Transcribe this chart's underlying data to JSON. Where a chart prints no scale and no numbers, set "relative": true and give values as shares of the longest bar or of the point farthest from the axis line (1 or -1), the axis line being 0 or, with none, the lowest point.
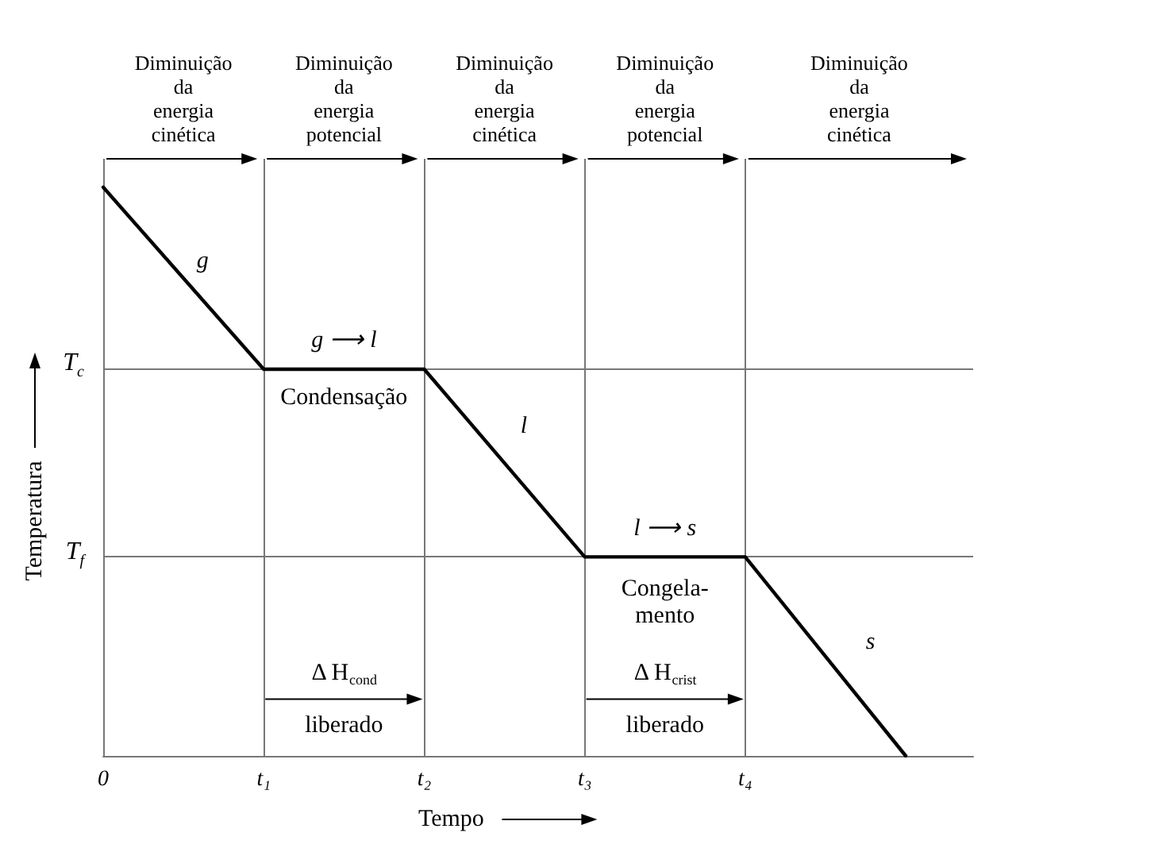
{
  "chart_data": {
    "type": "line",
    "relative": true,
    "xlabel": "Tempo",
    "ylabel": "Temperatura",
    "categories": [
      "0",
      "t₁",
      "t₂",
      "t₃",
      "t₄",
      null
    ],
    "series": [
      {
        "color": "#000000",
        "values": [
          1,
          0.68,
          0.68,
          0.35,
          0.35,
          0
        ]
      }
    ],
    "grid": "x",
    "marker": "none",
    "line_style": "solid",
    "ref_lines": [
      {
        "axis": "y",
        "value": 0.68,
        "label": "T$_{c}$"
      },
      {
        "axis": "y",
        "value": 0.35,
        "label": "T$_{f}$"
      }
    ],
    "annotations": [
      "Diminuição\nda\nenergia\ncinética",
      "Diminuição\nda\nenergia\npotencial",
      "Diminuição\nda\nenergia\ncinética",
      "Diminuição\nda\nenergia\npotencial",
      "Diminuição\nda\nenergia\ncinética",
      "g",
      "g ⟶ l",
      "Condensação",
      "l",
      "l ⟶ s",
      "Congela-\nmento",
      "s",
      "Δ H$_{cond}$\nliberado",
      "Δ H$_{crist}$\nliberado"
    ]
  }
}
